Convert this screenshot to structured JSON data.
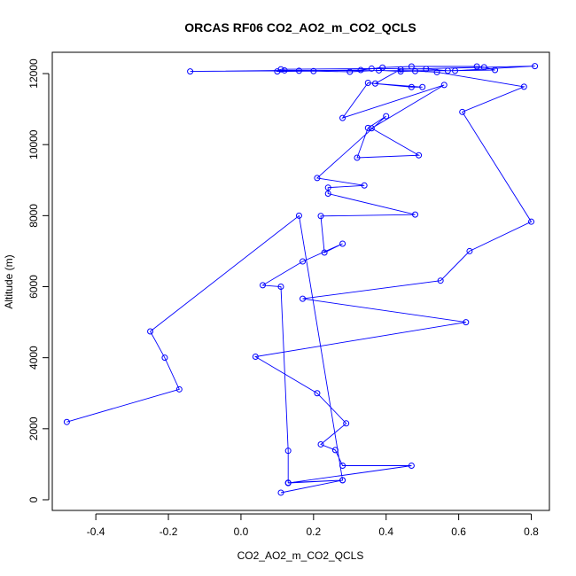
{
  "chart_data": {
    "type": "line",
    "title": "ORCAS RF06 CO2_AO2_m_CO2_QCLS",
    "xlabel": "CO2_AO2_m_CO2_QCLS",
    "ylabel": "Altitude (m)",
    "xlim": [
      -0.52,
      0.85
    ],
    "ylim": [
      -300,
      12600
    ],
    "xticks": [
      -0.4,
      -0.2,
      0.0,
      0.2,
      0.4,
      0.6,
      0.8
    ],
    "xtick_labels": [
      "-0.4",
      "-0.2",
      "0.0",
      "0.2",
      "0.4",
      "0.6",
      "0.8"
    ],
    "yticks": [
      0,
      2000,
      4000,
      6000,
      8000,
      10000,
      12000
    ],
    "ytick_labels": [
      "0",
      "2000",
      "4000",
      "6000",
      "8000",
      "10000",
      "12000"
    ],
    "grid": false,
    "line_color": "#0000ff",
    "marker": "open-circle",
    "series": [
      {
        "points": [
          [
            0.11,
            200
          ],
          [
            0.28,
            550
          ],
          [
            0.13,
            470
          ],
          [
            0.47,
            960
          ],
          [
            0.28,
            960
          ],
          [
            0.26,
            1400
          ],
          [
            0.22,
            1560
          ],
          [
            0.29,
            2150
          ],
          [
            0.21,
            3000
          ],
          [
            0.04,
            4030
          ],
          [
            0.62,
            5000
          ],
          [
            0.17,
            5660
          ],
          [
            0.55,
            6170
          ],
          [
            0.63,
            7000
          ],
          [
            0.8,
            7830
          ],
          [
            0.61,
            10920
          ],
          [
            0.78,
            11630
          ],
          [
            0.54,
            12040
          ],
          [
            0.48,
            12070
          ],
          [
            0.44,
            12060
          ],
          [
            0.38,
            12090
          ],
          [
            0.3,
            12050
          ],
          [
            0.2,
            12070
          ],
          [
            0.1,
            12060
          ],
          [
            0.11,
            12120
          ],
          [
            0.36,
            12140
          ],
          [
            0.51,
            12130
          ],
          [
            0.57,
            12080
          ],
          [
            0.7,
            12100
          ],
          [
            0.67,
            12180
          ],
          [
            0.65,
            12200
          ],
          [
            0.47,
            12200
          ],
          [
            0.39,
            12170
          ],
          [
            0.33,
            12100
          ],
          [
            0.16,
            12080
          ],
          [
            -0.14,
            12060
          ],
          [
            0.12,
            12090
          ],
          [
            0.59,
            12080
          ],
          [
            0.81,
            12210
          ],
          [
            0.44,
            12120
          ],
          [
            0.37,
            11720
          ],
          [
            0.5,
            11620
          ],
          [
            0.47,
            11620
          ],
          [
            0.35,
            11740
          ],
          [
            0.28,
            10750
          ],
          [
            0.56,
            11680
          ],
          [
            0.36,
            10460
          ],
          [
            0.49,
            9700
          ],
          [
            0.32,
            9630
          ],
          [
            0.35,
            10470
          ],
          [
            0.4,
            10800
          ],
          [
            0.21,
            9060
          ],
          [
            0.34,
            8850
          ],
          [
            0.24,
            8790
          ],
          [
            0.24,
            8620
          ],
          [
            0.48,
            8030
          ],
          [
            0.22,
            7990
          ],
          [
            0.23,
            6960
          ],
          [
            0.28,
            7210
          ],
          [
            0.17,
            6710
          ],
          [
            0.06,
            6040
          ],
          [
            0.11,
            6000
          ],
          [
            0.13,
            1380
          ],
          [
            0.13,
            480
          ],
          [
            0.28,
            550
          ],
          [
            0.16,
            8000
          ],
          [
            -0.25,
            4740
          ],
          [
            -0.21,
            4000
          ],
          [
            -0.17,
            3110
          ],
          [
            -0.48,
            2190
          ]
        ]
      }
    ]
  }
}
